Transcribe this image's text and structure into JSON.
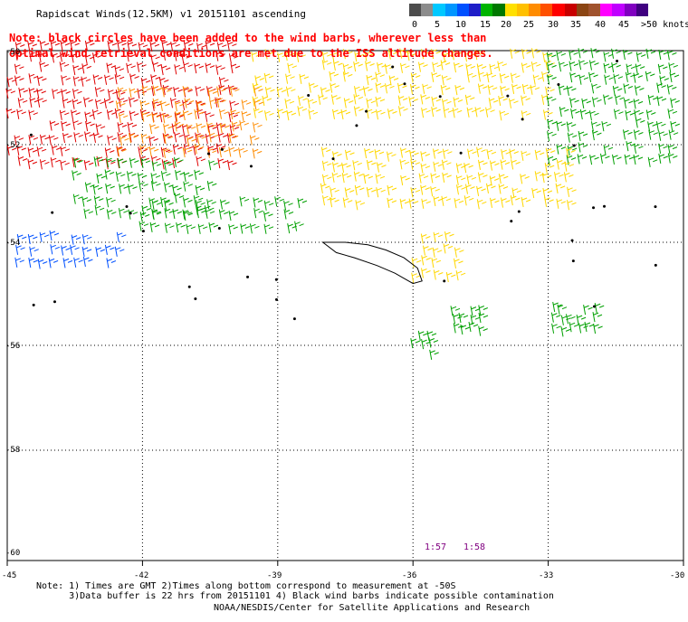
{
  "title": "Rapidscat Winds(12.5KM) v1 20151101 ascending",
  "note": [
    "Note: black circles have been added to the wind barbs, wherever less than",
    "   optimal wind retrieval conditions are met due to the ISS altitude changes."
  ],
  "colorbar": {
    "colors": [
      "#4d4d4d",
      "#8c8c8c",
      "#00c8ff",
      "#0096ff",
      "#0050ff",
      "#1e1ec8",
      "#00b400",
      "#007800",
      "#ffe000",
      "#ffc000",
      "#ff8c00",
      "#ff5000",
      "#ff0000",
      "#c80000",
      "#8b4513",
      "#a0522d",
      "#ff00ff",
      "#c000ff",
      "#8000c0",
      "#400080"
    ],
    "labels": [
      "0",
      "5",
      "10",
      "15",
      "20",
      "25",
      "30",
      "35",
      "40",
      "45",
      ">50 knots"
    ],
    "units": "knots"
  },
  "axes": {
    "lat_labels": [
      "-50",
      "-52",
      "-54",
      "-56",
      "-58",
      "-60"
    ],
    "lon_labels": [
      "-45",
      "-42",
      "-39",
      "-36",
      "-33",
      "-30"
    ]
  },
  "times": [
    "1:57",
    "1:58"
  ],
  "notes_bottom": [
    "Note: 1) Times are GMT 2)Times along bottom correspond to measurement at -50S",
    "      3)Data buffer is 22 hrs from 20151101 4) Black wind barbs indicate possible contamination"
  ],
  "credit": "NOAA/NESDIS/Center for Satellite Applications and Research",
  "barb_regions": [
    {
      "name": "red-upper-left",
      "color": "#e00000",
      "lon": [
        -45,
        -40
      ],
      "lat": [
        -50,
        -52.5
      ],
      "step": 0.45
    },
    {
      "name": "orange-upper-mid",
      "color": "#ff8c00",
      "lon": [
        -42.5,
        -39.5
      ],
      "lat": [
        -51,
        -52.3
      ],
      "step": 0.45
    },
    {
      "name": "yellow-upper",
      "color": "#ffd700",
      "lon": [
        -39.5,
        -33
      ],
      "lat": [
        -50.2,
        -51.6
      ],
      "step": 0.45
    },
    {
      "name": "green-upper-right",
      "color": "#00a000",
      "lon": [
        -33,
        -30.2
      ],
      "lat": [
        -50.2,
        -52.5
      ],
      "step": 0.45
    },
    {
      "name": "yellow-mid",
      "color": "#ffd700",
      "lon": [
        -38,
        -32.5
      ],
      "lat": [
        -52.3,
        -53.5
      ],
      "step": 0.45
    },
    {
      "name": "green-mid-left",
      "color": "#00a000",
      "lon": [
        -43.5,
        -40.5
      ],
      "lat": [
        -52.5,
        -53.5
      ],
      "step": 0.45
    },
    {
      "name": "green-lower-left",
      "color": "#00a000",
      "lon": [
        -42,
        -38.5
      ],
      "lat": [
        -53.3,
        -54.0
      ],
      "step": 0.45
    },
    {
      "name": "blue-lower-left",
      "color": "#0050ff",
      "lon": [
        -45,
        -42.5
      ],
      "lat": [
        -54.0,
        -54.6
      ],
      "step": 0.45
    },
    {
      "name": "yellow-islands",
      "color": "#ffd700",
      "lon": [
        -36,
        -34.8
      ],
      "lat": [
        -54.0,
        -54.9
      ],
      "step": 0.45
    },
    {
      "name": "green-s1",
      "color": "#00a000",
      "lon": [
        -35.1,
        -34.5
      ],
      "lat": [
        -55.4,
        -55.9
      ],
      "step": 0.35
    },
    {
      "name": "green-s2",
      "color": "#00a000",
      "lon": [
        -32.9,
        -31.8
      ],
      "lat": [
        -55.4,
        -55.9
      ],
      "step": 0.35
    },
    {
      "name": "green-s3",
      "color": "#00a000",
      "lon": [
        -36,
        -35.6
      ],
      "lat": [
        -55.9,
        -56.3
      ],
      "step": 0.35
    }
  ]
}
